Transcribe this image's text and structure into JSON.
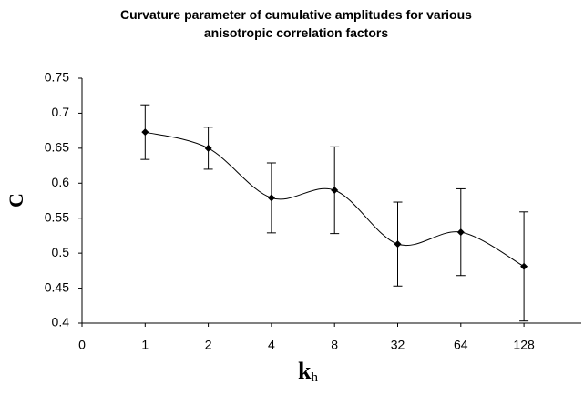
{
  "chart_data": {
    "type": "line",
    "title": "Curvature parameter of cumulative amplitudes for various anisotropic correlation factors",
    "ylabel": "C",
    "xlabel": "k",
    "xlabel_subscript": "h",
    "categories": [
      "0",
      "1",
      "2",
      "4",
      "8",
      "32",
      "64",
      "128"
    ],
    "values": [
      null,
      0.673,
      0.65,
      0.579,
      0.59,
      0.513,
      0.53,
      0.481
    ],
    "errors": [
      null,
      0.039,
      0.03,
      0.05,
      0.062,
      0.06,
      0.062,
      0.078
    ],
    "color": "#000000",
    "ylim": [
      0.4,
      0.75
    ],
    "yticks": [
      0.4,
      0.45,
      0.5,
      0.55,
      0.6,
      0.65,
      0.7,
      0.75
    ],
    "grid": false
  }
}
